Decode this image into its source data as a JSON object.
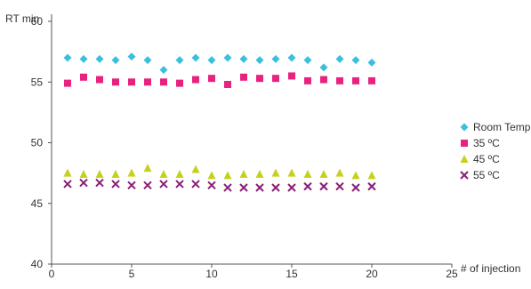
{
  "chart_data": {
    "type": "scatter",
    "ylabel": "RT min",
    "xlabel": "# of injection",
    "xlim": [
      0,
      25
    ],
    "ylim": [
      40,
      60
    ],
    "x_ticks": [
      0,
      5,
      10,
      15,
      20,
      25
    ],
    "y_ticks": [
      40,
      45,
      50,
      55,
      60
    ],
    "grid": false,
    "legend_position": "right",
    "series": [
      {
        "name": "Room Temp",
        "marker": "diamond",
        "color": "#3bbfe0",
        "x": [
          1,
          2,
          3,
          4,
          5,
          6,
          7,
          8,
          9,
          10,
          11,
          12,
          13,
          14,
          15,
          16,
          17,
          18,
          19,
          20
        ],
        "y": [
          57.0,
          56.9,
          56.9,
          56.8,
          57.1,
          56.8,
          56.0,
          56.8,
          57.0,
          56.8,
          57.0,
          56.9,
          56.8,
          56.9,
          57.0,
          56.8,
          56.2,
          56.9,
          56.8,
          56.6
        ]
      },
      {
        "name": "35 ºC",
        "marker": "square",
        "color": "#e8237f",
        "x": [
          1,
          2,
          3,
          4,
          5,
          6,
          7,
          8,
          9,
          10,
          11,
          12,
          13,
          14,
          15,
          16,
          17,
          18,
          19,
          20
        ],
        "y": [
          54.9,
          55.4,
          55.2,
          55.0,
          55.0,
          55.0,
          55.0,
          54.9,
          55.2,
          55.3,
          54.8,
          55.4,
          55.3,
          55.3,
          55.5,
          55.1,
          55.2,
          55.1,
          55.1,
          55.1
        ]
      },
      {
        "name": "45 ºC",
        "marker": "triangle",
        "color": "#c5d11a",
        "x": [
          1,
          2,
          3,
          4,
          5,
          6,
          7,
          8,
          9,
          10,
          11,
          12,
          13,
          14,
          15,
          16,
          17,
          18,
          19,
          20
        ],
        "y": [
          47.5,
          47.4,
          47.4,
          47.4,
          47.5,
          47.9,
          47.4,
          47.4,
          47.8,
          47.3,
          47.3,
          47.4,
          47.4,
          47.5,
          47.5,
          47.4,
          47.4,
          47.5,
          47.3,
          47.3
        ]
      },
      {
        "name": "55 ºC",
        "marker": "x",
        "color": "#8b2077",
        "x": [
          1,
          2,
          3,
          4,
          5,
          6,
          7,
          8,
          9,
          10,
          11,
          12,
          13,
          14,
          15,
          16,
          17,
          18,
          19,
          20
        ],
        "y": [
          46.6,
          46.7,
          46.7,
          46.6,
          46.5,
          46.5,
          46.6,
          46.6,
          46.6,
          46.5,
          46.3,
          46.3,
          46.3,
          46.3,
          46.3,
          46.4,
          46.4,
          46.4,
          46.3,
          46.4
        ]
      }
    ]
  }
}
